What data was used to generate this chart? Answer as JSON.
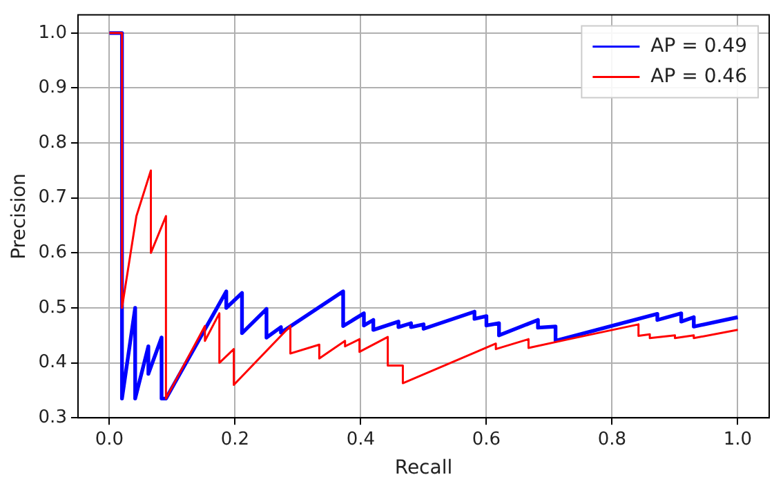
{
  "chart_data": {
    "type": "line",
    "xlabel": "Recall",
    "ylabel": "Precision",
    "xlim": [
      -0.05,
      1.05
    ],
    "xticks": [
      {
        "value": 0,
        "label": "0.0"
      },
      0.2,
      0.4,
      0.6,
      0.8,
      {
        "value": 1,
        "label": "1.0"
      }
    ],
    "ylim": [
      0.3,
      1.033
    ],
    "yticks": [
      0.3,
      0.4,
      0.5,
      0.6,
      0.7,
      0.8,
      0.9,
      {
        "value": 1,
        "label": "1.0"
      }
    ],
    "grid": true,
    "legend": "top right",
    "marker": "none",
    "line_style": "solid",
    "series": [
      {
        "name": "AP = 0.49",
        "color": "#0000ff",
        "x": [
          0,
          0.02,
          0.02,
          0.041,
          0.041,
          0.062,
          0.062,
          0.083,
          0.083,
          0.09,
          0.186,
          0.186,
          0.211,
          0.211,
          0.25,
          0.25,
          0.273,
          0.273,
          0.372,
          0.372,
          0.405,
          0.405,
          0.42,
          0.42,
          0.46,
          0.46,
          0.48,
          0.48,
          0.5,
          0.5,
          0.581,
          0.581,
          0.6,
          0.6,
          0.62,
          0.62,
          0.682,
          0.682,
          0.71,
          0.71,
          0.872,
          0.872,
          0.91,
          0.91,
          0.93,
          0.93,
          1.0
        ],
        "values": [
          1,
          1,
          0.335,
          0.5,
          0.335,
          0.43,
          0.38,
          0.446,
          0.335,
          0.335,
          0.53,
          0.5,
          0.527,
          0.454,
          0.498,
          0.446,
          0.465,
          0.455,
          0.53,
          0.467,
          0.49,
          0.468,
          0.478,
          0.46,
          0.475,
          0.465,
          0.472,
          0.465,
          0.47,
          0.462,
          0.493,
          0.48,
          0.485,
          0.468,
          0.472,
          0.45,
          0.478,
          0.464,
          0.466,
          0.44,
          0.489,
          0.478,
          0.49,
          0.475,
          0.483,
          0.466,
          0.483
        ]
      },
      {
        "name": "AP = 0.46",
        "color": "#ff0000",
        "x": [
          0,
          0.02,
          0.02,
          0.043,
          0.066,
          0.066,
          0.09,
          0.09,
          0.152,
          0.152,
          0.175,
          0.175,
          0.198,
          0.198,
          0.288,
          0.288,
          0.334,
          0.334,
          0.375,
          0.375,
          0.398,
          0.398,
          0.443,
          0.443,
          0.467,
          0.467,
          0.615,
          0.615,
          0.667,
          0.667,
          0.731,
          0.842,
          0.842,
          0.86,
          0.86,
          0.9,
          0.9,
          0.93,
          0.93,
          1.0
        ],
        "values": [
          1,
          1,
          0.5,
          0.667,
          0.75,
          0.6,
          0.667,
          0.335,
          0.467,
          0.44,
          0.49,
          0.4,
          0.425,
          0.36,
          0.467,
          0.417,
          0.433,
          0.408,
          0.44,
          0.43,
          0.443,
          0.42,
          0.447,
          0.395,
          0.395,
          0.363,
          0.435,
          0.425,
          0.443,
          0.427,
          0.443,
          0.47,
          0.449,
          0.452,
          0.445,
          0.45,
          0.445,
          0.45,
          0.445,
          0.46
        ]
      }
    ]
  }
}
